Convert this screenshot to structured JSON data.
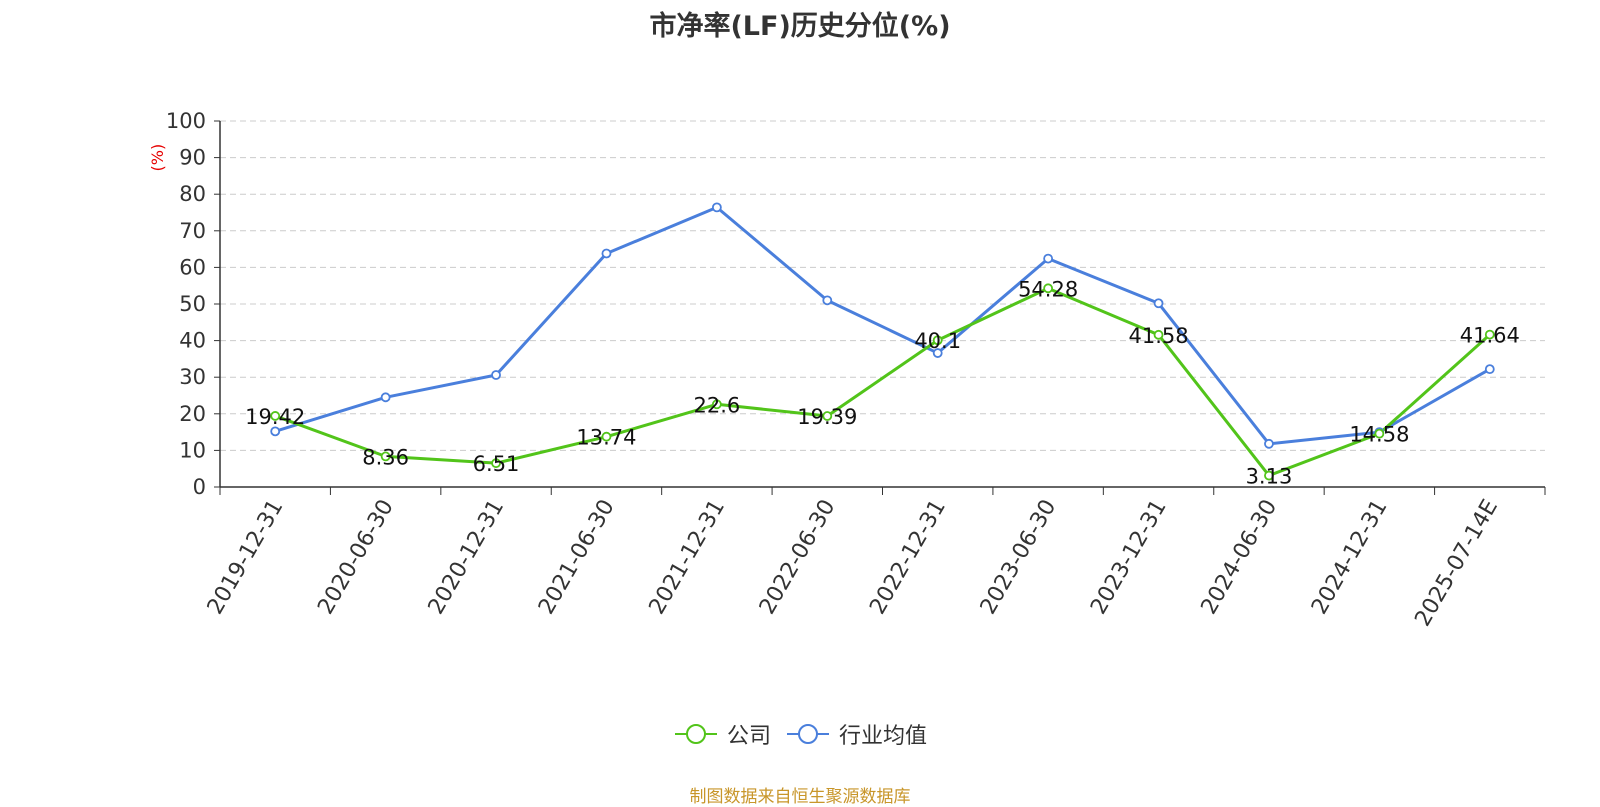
{
  "chart_data": {
    "type": "line",
    "title": "市净率(LF)历史分位(%)",
    "ylabel": "(%)",
    "xlabel": "",
    "ylim": [
      0,
      100
    ],
    "yticks": [
      0,
      10,
      20,
      30,
      40,
      50,
      60,
      70,
      80,
      90,
      100
    ],
    "grid": true,
    "legend_position": "bottom-center",
    "categories": [
      "2019-12-31",
      "2020-06-30",
      "2020-12-31",
      "2021-06-30",
      "2021-12-31",
      "2022-06-30",
      "2022-12-31",
      "2023-06-30",
      "2023-12-31",
      "2024-06-30",
      "2024-12-31",
      "2025-07-14E"
    ],
    "series": [
      {
        "name": "公司",
        "color": "#52c41a",
        "values": [
          19.42,
          8.36,
          6.51,
          13.74,
          22.6,
          19.39,
          40.1,
          54.28,
          41.58,
          3.13,
          14.58,
          41.64
        ],
        "labels": [
          "19.42",
          "8.36",
          "6.51",
          "13.74",
          "22.6",
          "19.39",
          "40.1",
          "54.28",
          "41.58",
          "3.13",
          "14.58",
          "41.64"
        ]
      },
      {
        "name": "行业均值",
        "color": "#4a7fdc",
        "values": [
          15.2,
          24.5,
          30.6,
          63.8,
          76.4,
          51.0,
          36.6,
          62.4,
          50.2,
          11.8,
          15.0,
          32.2
        ]
      }
    ]
  },
  "source_note": "制图数据来自恒生聚源数据库",
  "y_axis_label_color": "#e60000"
}
